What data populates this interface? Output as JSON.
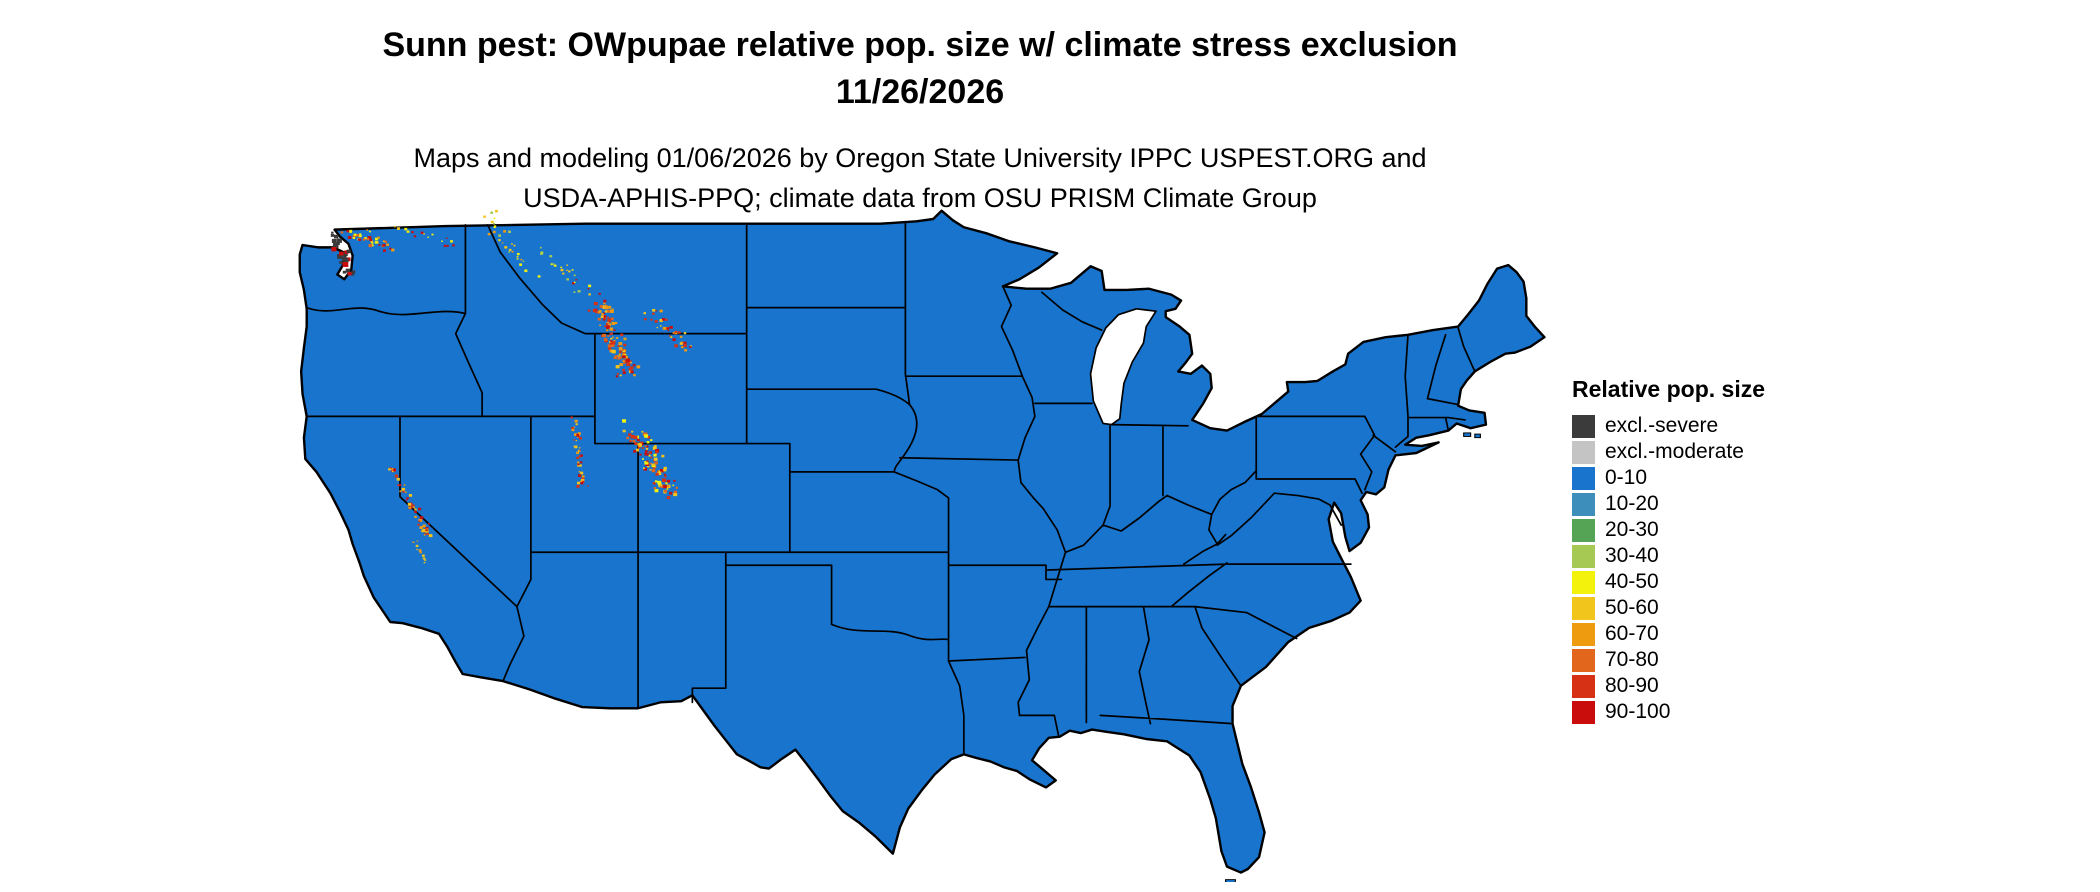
{
  "title": {
    "line1": "Sunn pest: OWpupae relative pop. size w/ climate stress exclusion",
    "line2": "11/26/2026"
  },
  "subtitle": {
    "line1": "Maps and modeling 01/06/2026 by Oregon State University IPPC USPEST.ORG and",
    "line2": "USDA-APHIS-PPQ; climate data from OSU PRISM Climate Group"
  },
  "legend": {
    "title": "Relative pop. size",
    "entries": [
      {
        "label": "excl.-severe",
        "color": "#3b3b3b"
      },
      {
        "label": "excl.-moderate",
        "color": "#c4c4c4"
      },
      {
        "label": "0-10",
        "color": "#1874cd"
      },
      {
        "label": "10-20",
        "color": "#3d8ebb"
      },
      {
        "label": "20-30",
        "color": "#55a455"
      },
      {
        "label": "30-40",
        "color": "#a5c953"
      },
      {
        "label": "40-50",
        "color": "#f2f20d"
      },
      {
        "label": "50-60",
        "color": "#f2c51c"
      },
      {
        "label": "60-70",
        "color": "#ef9b10"
      },
      {
        "label": "70-80",
        "color": "#e2661c"
      },
      {
        "label": "80-90",
        "color": "#d63115"
      },
      {
        "label": "90-100",
        "color": "#c90d0d"
      }
    ]
  },
  "map": {
    "region": "Continental United States",
    "base_fill": "#1874cd",
    "state_border_color": "#000000",
    "water_color": "#ffffff"
  }
}
